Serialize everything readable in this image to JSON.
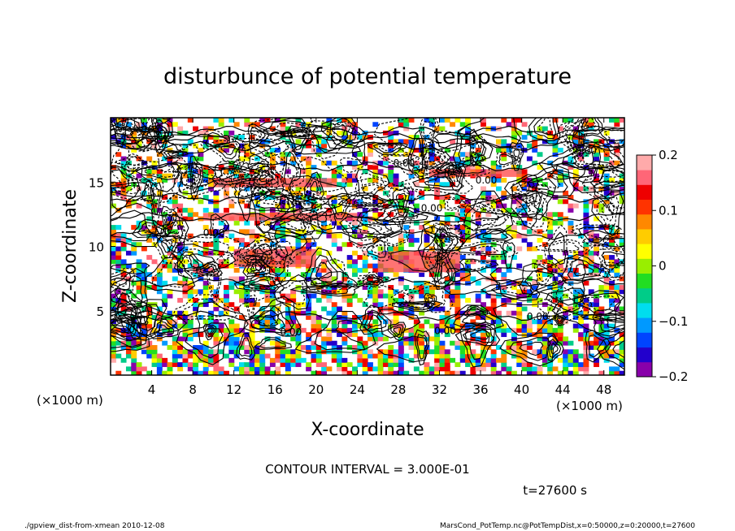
{
  "chart_data": {
    "type": "heatmap",
    "title": "disturbunce of potential temperature",
    "xlabel": "X-coordinate",
    "ylabel": "Z-coordinate",
    "x_unit_left": "(×1000 m)",
    "x_unit_right": "(×1000 m)",
    "xlim": [
      0,
      50
    ],
    "ylim": [
      0,
      20
    ],
    "x_ticks": [
      4,
      8,
      12,
      16,
      20,
      24,
      28,
      32,
      36,
      40,
      44,
      48
    ],
    "y_ticks": [
      5,
      10,
      15
    ],
    "colorbar": {
      "range": [
        -0.2,
        0.2
      ],
      "tick_values": [
        0.2,
        0.1,
        0,
        -0.1,
        -0.2
      ],
      "tick_labels": [
        "0.2",
        "0.1",
        "0",
        "−0.1",
        "−0.2"
      ],
      "colors": [
        "#8800aa",
        "#2200cc",
        "#0044ff",
        "#0099ff",
        "#00ddee",
        "#00cc88",
        "#22dd22",
        "#99ee00",
        "#ffff00",
        "#ffcc00",
        "#ff8800",
        "#ff3300",
        "#ee0000",
        "#ff6677",
        "#ffaaaa"
      ]
    },
    "contour_interval_text": "CONTOUR INTERVAL = 3.000E-01",
    "time_label": "t=27600 s",
    "contour_labels": [
      "0.00",
      "0.00",
      "0.00",
      "0.00",
      "0.00",
      "0.00",
      "0.00",
      "0.00"
    ]
  },
  "footer": {
    "left": "./gpview_dist-from-xmean  2010-12-08",
    "right": "MarsCond_PotTemp.nc@PotTempDist,x=0:50000,z=0:20000,t=27600"
  }
}
